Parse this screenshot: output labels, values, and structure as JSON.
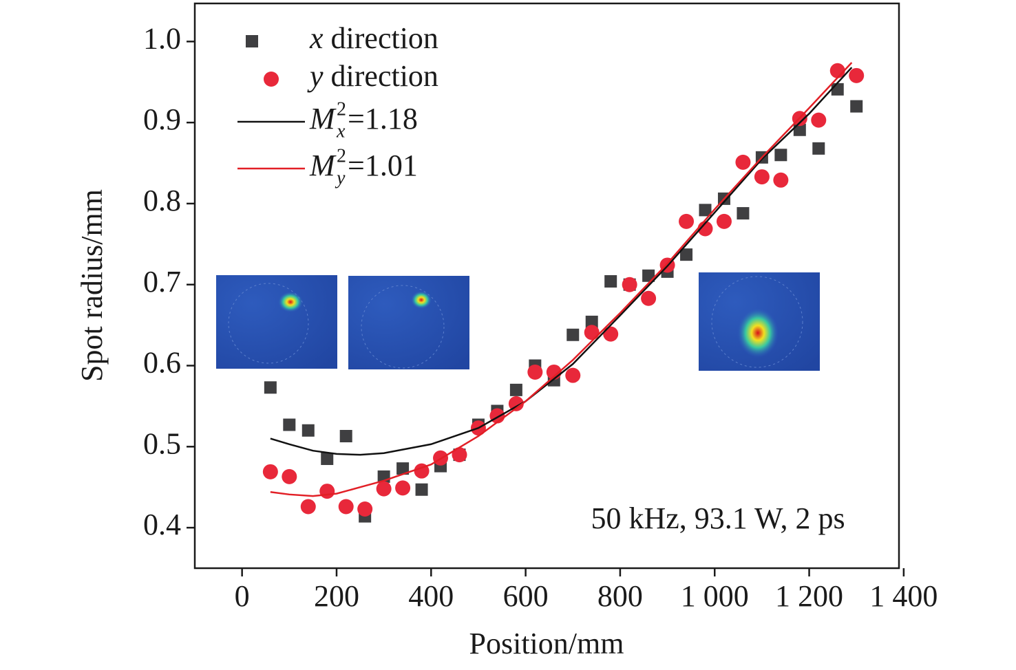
{
  "chart_data": {
    "type": "scatter",
    "x_label": "Position/mm",
    "y_label": "Spot radius/mm",
    "annotation": "50 kHz, 93.1 W, 2 ps",
    "xlim": [
      -100,
      1390
    ],
    "ylim": [
      0.35,
      1.047
    ],
    "xticks": [
      0,
      200,
      400,
      600,
      800,
      {
        "value": 1000,
        "label": "1 000"
      },
      {
        "value": 1200,
        "label": "1 200"
      },
      {
        "value": 1400,
        "label": "1 400"
      }
    ],
    "yticks": [
      0.4,
      0.5,
      0.6,
      0.7,
      0.8,
      0.9,
      {
        "value": 1,
        "label": "1.0"
      }
    ],
    "series": [
      {
        "name": "x direction",
        "type": "scatter",
        "marker": "square",
        "color": "#3f3f41",
        "x": [
          60,
          100,
          140,
          180,
          220,
          260,
          300,
          340,
          380,
          420,
          460,
          500,
          540,
          580,
          620,
          660,
          700,
          740,
          780,
          820,
          860,
          900,
          940,
          980,
          1020,
          1060,
          1100,
          1140,
          1180,
          1220,
          1260,
          1300
        ],
        "values": [
          0.573,
          0.527,
          0.52,
          0.485,
          0.513,
          0.414,
          0.463,
          0.473,
          0.447,
          0.476,
          0.49,
          0.527,
          0.544,
          0.57,
          0.6,
          0.582,
          0.638,
          0.654,
          0.704,
          0.7,
          0.711,
          0.716,
          0.737,
          0.792,
          0.806,
          0.788,
          0.857,
          0.86,
          0.891,
          0.868,
          0.941,
          0.92
        ]
      },
      {
        "name": "y direction",
        "type": "scatter",
        "marker": "circle",
        "color": "#e8283a",
        "x": [
          60,
          100,
          140,
          180,
          220,
          260,
          300,
          340,
          380,
          420,
          460,
          500,
          540,
          580,
          620,
          660,
          700,
          740,
          780,
          820,
          860,
          900,
          940,
          980,
          1020,
          1060,
          1100,
          1140,
          1180,
          1220,
          1260,
          1300
        ],
        "values": [
          0.469,
          0.463,
          0.426,
          0.445,
          0.426,
          0.423,
          0.448,
          0.449,
          0.47,
          0.486,
          0.49,
          0.523,
          0.538,
          0.553,
          0.592,
          0.592,
          0.588,
          0.641,
          0.639,
          0.7,
          0.683,
          0.724,
          0.778,
          0.769,
          0.778,
          0.851,
          0.833,
          0.829,
          0.905,
          0.903,
          0.964,
          0.958
        ]
      },
      {
        "name": {
          "base": "M",
          "sup": "2",
          "sub": "x",
          "rest": "=1.18"
        },
        "type": "line",
        "color": "#111111",
        "x": [
          60,
          100,
          150,
          200,
          250,
          300,
          400,
          500,
          600,
          700,
          800,
          900,
          1000,
          1100,
          1200,
          1290
        ],
        "values": [
          0.51,
          0.503,
          0.495,
          0.491,
          0.49,
          0.492,
          0.503,
          0.523,
          0.556,
          0.602,
          0.662,
          0.723,
          0.789,
          0.855,
          0.911,
          0.968
        ]
      },
      {
        "name": {
          "base": "M",
          "sup": "2",
          "sub": "y",
          "rest": "=1.01"
        },
        "type": "line",
        "color": "#e21f26",
        "x": [
          60,
          100,
          150,
          200,
          250,
          300,
          400,
          500,
          600,
          700,
          800,
          900,
          1000,
          1100,
          1200,
          1290
        ],
        "values": [
          0.444,
          0.441,
          0.439,
          0.442,
          0.45,
          0.458,
          0.478,
          0.513,
          0.556,
          0.607,
          0.665,
          0.726,
          0.793,
          0.857,
          0.918,
          0.974
        ]
      }
    ]
  }
}
